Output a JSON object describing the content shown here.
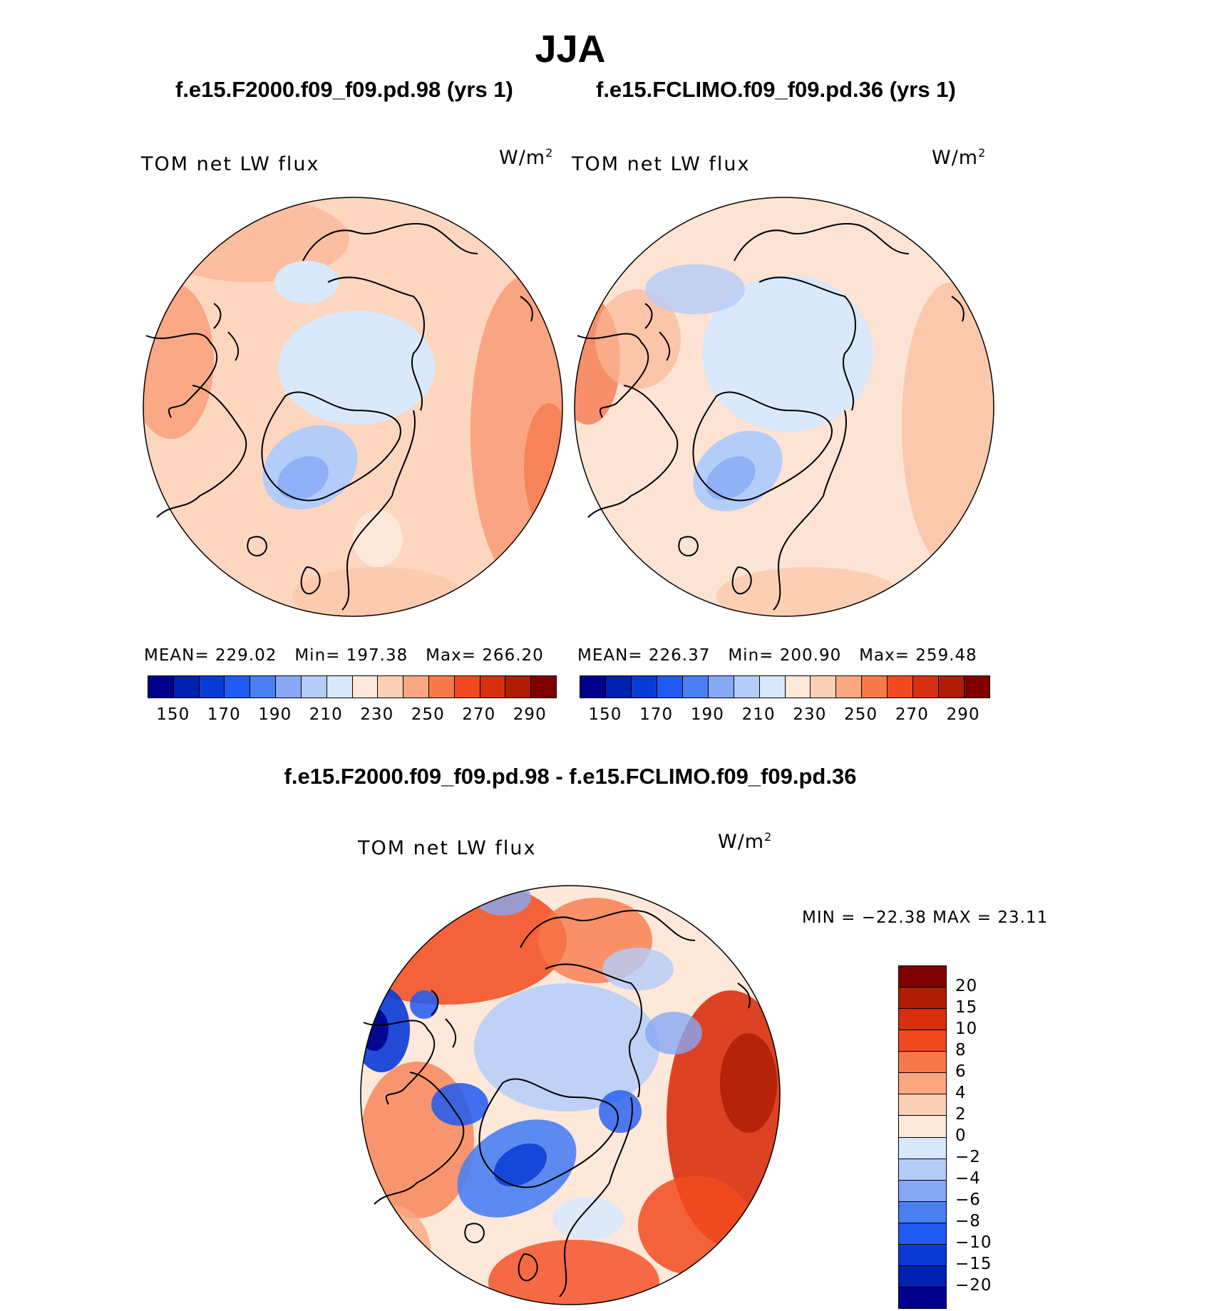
{
  "title": "JJA",
  "panels": [
    {
      "case": "f.e15.F2000.f09_f09.pd.98 (yrs 1)",
      "variable": "TOM net LW flux",
      "units": "W/m",
      "units_exp": "2",
      "mean_label": "MEAN=",
      "mean": "229.02",
      "min_label": "Min=",
      "min": "197.38",
      "max_label": "Max=",
      "max": "266.20",
      "fill_color": "#fdd6c0"
    },
    {
      "case": "f.e15.FCLIMO.f09_f09.pd.36 (yrs 1)",
      "variable": "TOM net LW flux",
      "units": "W/m",
      "units_exp": "2",
      "mean_label": "MEAN=",
      "mean": "226.37",
      "min_label": "Min=",
      "min": "200.90",
      "max_label": "Max=",
      "max": "259.48",
      "fill_color": "#fde3d3"
    }
  ],
  "abs_colorbar": {
    "colors": [
      "#00008b",
      "#0020b0",
      "#0a3ad6",
      "#1f5af2",
      "#4a7ff2",
      "#86a8f5",
      "#b4ccf8",
      "#d9e8fb",
      "#fde8da",
      "#fcd0b8",
      "#fba882",
      "#f7794a",
      "#f24a1e",
      "#d8300e",
      "#b01c06",
      "#800000"
    ],
    "ticks": [
      "150",
      "170",
      "190",
      "210",
      "230",
      "250",
      "270",
      "290"
    ]
  },
  "diff": {
    "title": "f.e15.F2000.f09_f09.pd.98 - f.e15.FCLIMO.f09_f09.pd.36",
    "variable": "TOM net LW flux",
    "units": "W/m",
    "units_exp": "2",
    "minmax_text": "MIN = −22.38 MAX =   23.11",
    "colors": [
      "#800000",
      "#b01c06",
      "#d8300e",
      "#f24a1e",
      "#f7794a",
      "#fba882",
      "#fcd0b8",
      "#fde8da",
      "#d9e8fb",
      "#b4ccf8",
      "#86a8f5",
      "#4a7ff2",
      "#1f5af2",
      "#0a3ad6",
      "#0020b0",
      "#00008b"
    ],
    "ticks": [
      "20",
      "15",
      "10",
      "8",
      "6",
      "4",
      "2",
      "0",
      "−2",
      "−4",
      "−6",
      "−8",
      "−10",
      "−15",
      "−20"
    ]
  },
  "chart_data": [
    {
      "type": "heatmap",
      "title": "f.e15.F2000.f09_f09.pd.98 (yrs 1)",
      "variable": "TOM net LW flux",
      "units": "W/m2",
      "season": "JJA",
      "projection": "north polar stereographic",
      "mean": 229.02,
      "min": 197.38,
      "max": 266.2,
      "levels": [
        150,
        160,
        170,
        180,
        190,
        200,
        210,
        220,
        230,
        240,
        250,
        260,
        270,
        280,
        290
      ]
    },
    {
      "type": "heatmap",
      "title": "f.e15.FCLIMO.f09_f09.pd.36 (yrs 1)",
      "variable": "TOM net LW flux",
      "units": "W/m2",
      "season": "JJA",
      "projection": "north polar stereographic",
      "mean": 226.37,
      "min": 200.9,
      "max": 259.48,
      "levels": [
        150,
        160,
        170,
        180,
        190,
        200,
        210,
        220,
        230,
        240,
        250,
        260,
        270,
        280,
        290
      ]
    },
    {
      "type": "heatmap",
      "title": "f.e15.F2000.f09_f09.pd.98 - f.e15.FCLIMO.f09_f09.pd.36",
      "variable": "TOM net LW flux",
      "units": "W/m2",
      "season": "JJA",
      "projection": "north polar stereographic",
      "min": -22.38,
      "max": 23.11,
      "levels": [
        -20,
        -15,
        -10,
        -8,
        -6,
        -4,
        -2,
        0,
        2,
        4,
        6,
        8,
        10,
        15,
        20
      ]
    }
  ]
}
